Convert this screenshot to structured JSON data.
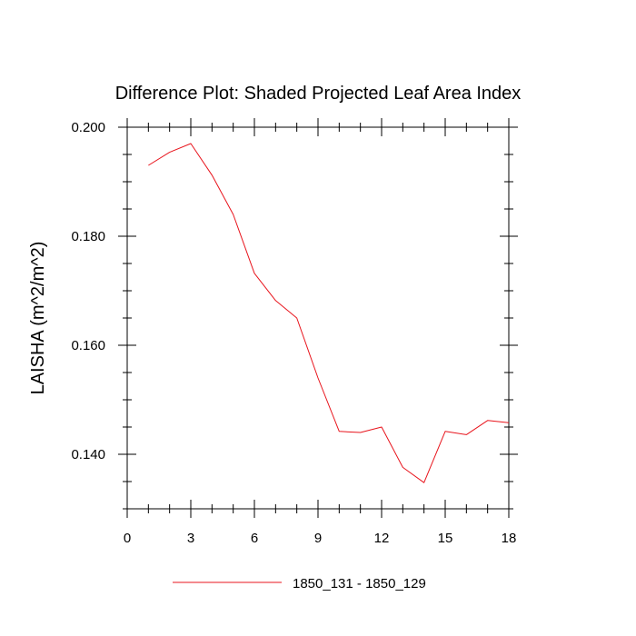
{
  "chart_data": {
    "type": "line",
    "title": "Difference Plot: Shaded Projected Leaf Area Index",
    "xlabel": "",
    "ylabel": "LAISHA  (m^2/m^2)",
    "xlim": [
      0,
      18
    ],
    "ylim": [
      0.13,
      0.2
    ],
    "x_major_ticks": [
      0,
      3,
      6,
      9,
      12,
      15,
      18
    ],
    "x_tick_labels": [
      "0",
      "3",
      "6",
      "9",
      "12",
      "15",
      "18"
    ],
    "x_minor_step": 1,
    "y_major_ticks": [
      0.14,
      0.16,
      0.18,
      0.2
    ],
    "y_tick_labels": [
      "0.140",
      "0.160",
      "0.180",
      "0.200"
    ],
    "y_minor_step": 0.005,
    "grid": false,
    "legend_position": "bottom",
    "series": [
      {
        "name": "1850_131 - 1850_129",
        "color": "#e8141c",
        "x": [
          1,
          2,
          3,
          4,
          5,
          6,
          7,
          8,
          9,
          10,
          11,
          12,
          13,
          14,
          15,
          16,
          17,
          18
        ],
        "values": [
          0.193,
          0.1954,
          0.197,
          0.1912,
          0.184,
          0.1732,
          0.1682,
          0.165,
          0.154,
          0.1442,
          0.144,
          0.145,
          0.1376,
          0.1348,
          0.1442,
          0.1436,
          0.1462,
          0.1458
        ]
      }
    ]
  }
}
